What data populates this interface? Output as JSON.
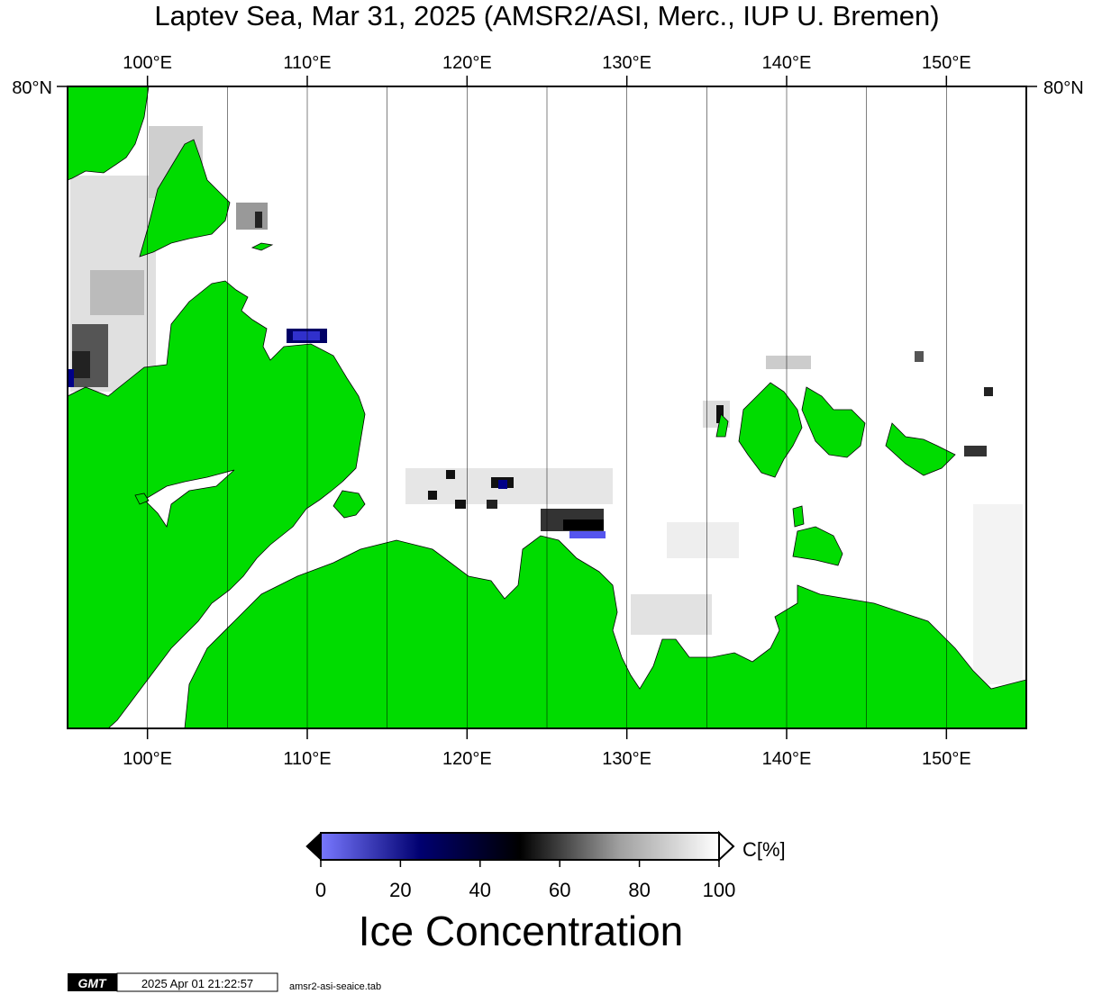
{
  "title": "Laptev Sea, Mar 31, 2025 (AMSR2/ASI, Merc., IUP U. Bremen)",
  "lon_labels": [
    "100°E",
    "110°E",
    "120°E",
    "130°E",
    "140°E",
    "150°E"
  ],
  "lat_label_left": "80°N",
  "lat_label_right": "80°N",
  "colorbar": {
    "unit_label": "C[%]",
    "tick_labels": [
      "0",
      "20",
      "40",
      "60",
      "80",
      "100"
    ],
    "title": "Ice Concentration",
    "stops": [
      {
        "value": 0,
        "color": "#7878ff"
      },
      {
        "value": 25,
        "color": "#000070"
      },
      {
        "value": 50,
        "color": "#000000"
      },
      {
        "value": 75,
        "color": "#a0a0a0"
      },
      {
        "value": 100,
        "color": "#ffffff"
      }
    ]
  },
  "map": {
    "lon_range": [
      95,
      155
    ],
    "gridlines_every_deg": 5,
    "land_color": "#00dc00",
    "ocean_ice_color": "#ffffff"
  },
  "footer": {
    "logo_text": "GMT",
    "timestamp": "2025 Apr 01 21:22:57",
    "filename": "amsr2-asi-seaice.tab"
  }
}
